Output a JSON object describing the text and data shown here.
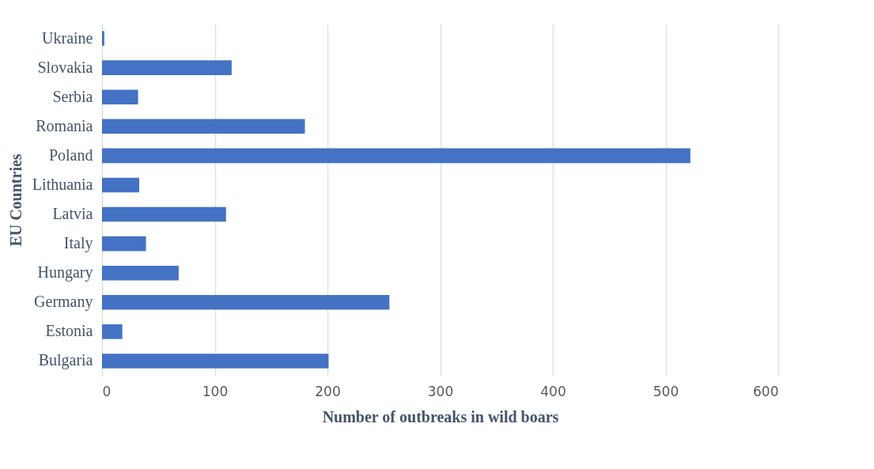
{
  "chart_data": {
    "type": "bar",
    "orientation": "horizontal",
    "xlabel": "Number of outbreaks in wild boars",
    "ylabel": "EU Countries",
    "categories": [
      "Ukraine",
      "Slovakia",
      "Serbia",
      "Romania",
      "Poland",
      "Lithuania",
      "Latvia",
      "Italy",
      "Hungary",
      "Germany",
      "Estonia",
      "Bulgaria"
    ],
    "values": [
      2,
      115,
      32,
      180,
      522,
      33,
      110,
      39,
      68,
      255,
      18,
      201
    ],
    "color": "#4472c4",
    "xlim": [
      0,
      600
    ],
    "xticks": [
      0,
      100,
      200,
      300,
      400,
      500,
      600
    ],
    "grid": "x"
  }
}
